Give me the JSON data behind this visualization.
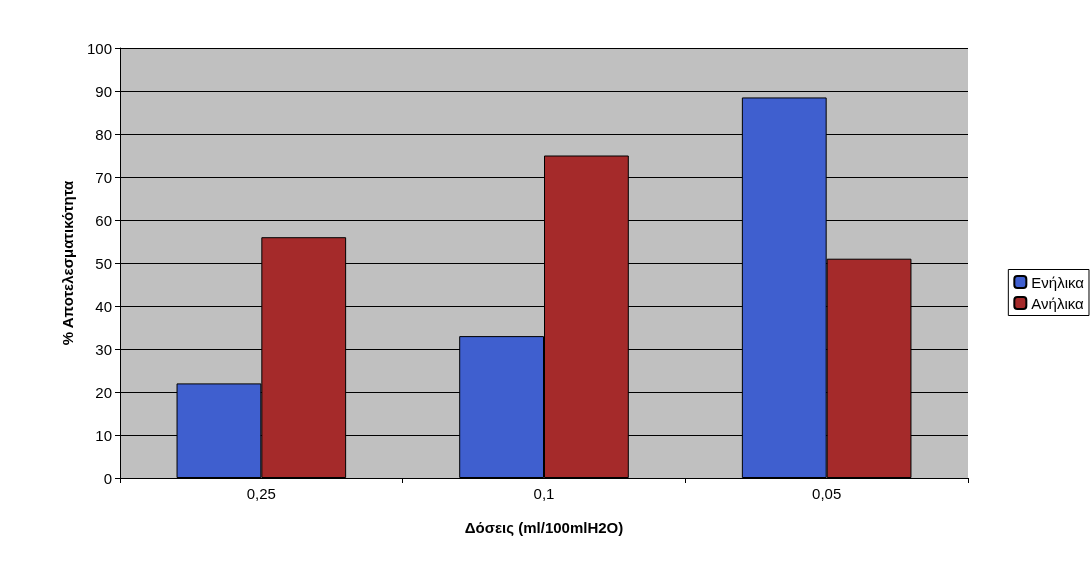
{
  "chart_data": {
    "type": "bar",
    "xlabel": "Δόσεις (ml/100mlH2O)",
    "ylabel": "% Αποτελεσματικότητα",
    "categories": [
      "0,25",
      "0,1",
      "0,05"
    ],
    "series": [
      {
        "name": "Ενήλικα",
        "color": "#3f5fcf",
        "values": [
          22,
          33,
          88.5
        ]
      },
      {
        "name": "Ανήλικα",
        "color": "#a52a2a",
        "values": [
          56,
          75,
          51
        ]
      }
    ],
    "ylim": [
      0,
      100
    ],
    "yticks": [
      0,
      10,
      20,
      30,
      40,
      50,
      60,
      70,
      80,
      90,
      100
    ],
    "grid": "y",
    "legend": "right"
  }
}
